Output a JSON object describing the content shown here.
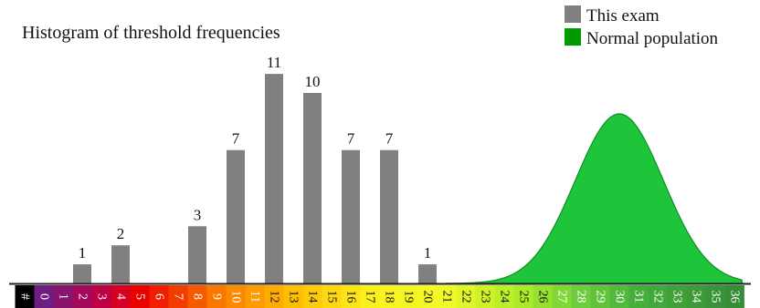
{
  "chart_data": {
    "type": "bar",
    "title": "Histogram of threshold frequencies",
    "legend": {
      "position": "top-right",
      "entries": [
        {
          "name": "This exam",
          "color": "#808080"
        },
        {
          "name": "Normal population",
          "color": "#009900"
        }
      ]
    },
    "x_axis": {
      "first_label": "#",
      "categories": [
        "0",
        "1",
        "2",
        "3",
        "4",
        "5",
        "6",
        "7",
        "8",
        "9",
        "10",
        "11",
        "12",
        "13",
        "14",
        "15",
        "16",
        "17",
        "18",
        "19",
        "20",
        "21",
        "22",
        "23",
        "24",
        "25",
        "26",
        "27",
        "28",
        "29",
        "30",
        "31",
        "32",
        "33",
        "34",
        "35",
        "36"
      ]
    },
    "series": [
      {
        "name": "This exam",
        "type": "bar",
        "x": [
          2,
          4,
          8,
          10,
          12,
          14,
          16,
          18,
          20
        ],
        "values": [
          1,
          2,
          3,
          7,
          11,
          10,
          7,
          7,
          1
        ]
      },
      {
        "name": "Normal population",
        "type": "area",
        "distribution": "normal",
        "mean": 30,
        "peak": 8.9
      }
    ],
    "ylim": [
      0,
      11.6
    ],
    "grid": false
  }
}
